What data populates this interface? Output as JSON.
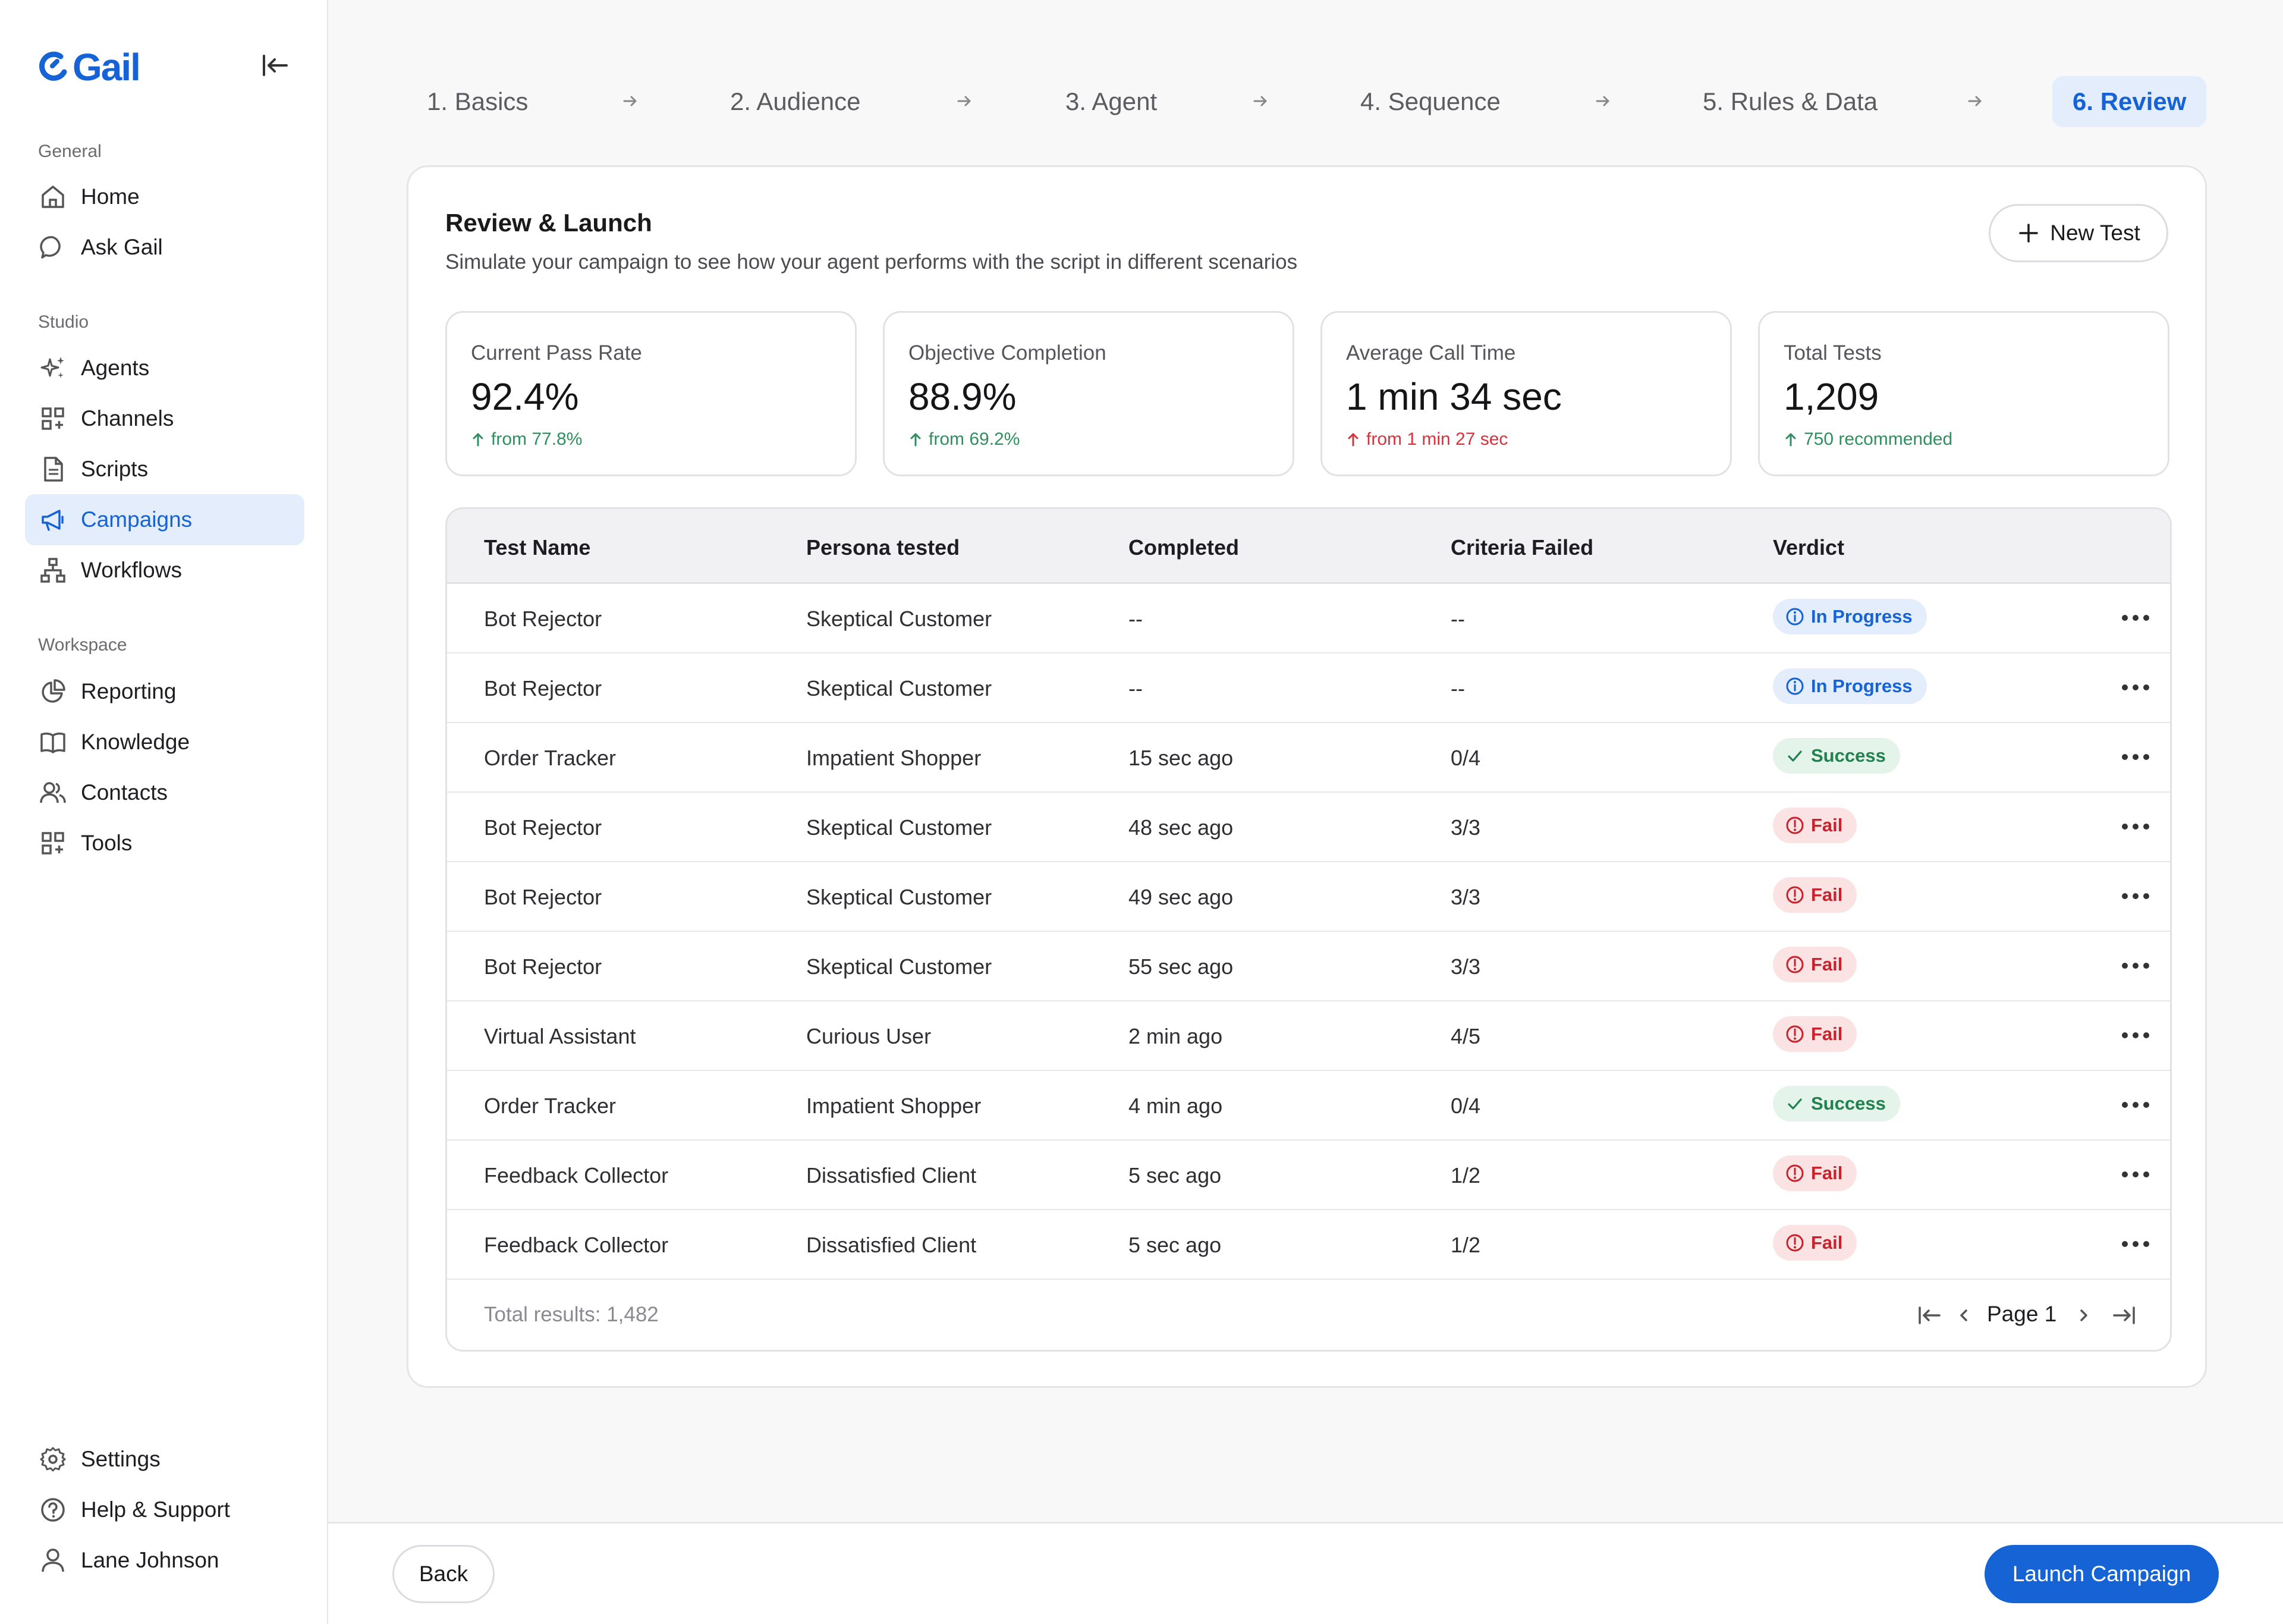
{
  "brand": {
    "name": "Gail",
    "accent": "#1663d6"
  },
  "sidebar": {
    "sections": {
      "general": "General",
      "studio": "Studio",
      "workspace": "Workspace"
    },
    "general": [
      {
        "label": "Home",
        "icon": "home-icon"
      },
      {
        "label": "Ask Gail",
        "icon": "chat-bubble-icon"
      }
    ],
    "studio": [
      {
        "label": "Agents",
        "icon": "sparkles-icon"
      },
      {
        "label": "Channels",
        "icon": "grid-plus-icon"
      },
      {
        "label": "Scripts",
        "icon": "document-icon"
      },
      {
        "label": "Campaigns",
        "icon": "megaphone-icon",
        "active": true
      },
      {
        "label": "Workflows",
        "icon": "workflow-icon"
      }
    ],
    "workspace": [
      {
        "label": "Reporting",
        "icon": "pie-chart-icon"
      },
      {
        "label": "Knowledge",
        "icon": "book-icon"
      },
      {
        "label": "Contacts",
        "icon": "users-icon"
      },
      {
        "label": "Tools",
        "icon": "grid-plus-icon"
      }
    ],
    "footer": [
      {
        "label": "Settings",
        "icon": "gear-icon"
      },
      {
        "label": "Help & Support",
        "icon": "help-circle-icon"
      },
      {
        "label": "Lane Johnson",
        "icon": "user-icon"
      }
    ]
  },
  "steps": [
    "1. Basics",
    "2. Audience",
    "3. Agent",
    "4. Sequence",
    "5. Rules & Data",
    "6. Review"
  ],
  "active_step": "6. Review",
  "review": {
    "title": "Review & Launch",
    "subtitle": "Simulate your campaign to see how your agent performs with the script in different scenarios",
    "new_test_label": "New Test"
  },
  "stats": [
    {
      "label": "Current Pass Rate",
      "value": "92.4%",
      "delta": "from 77.8%",
      "trend": "up-good"
    },
    {
      "label": "Objective Completion",
      "value": "88.9%",
      "delta": "from 69.2%",
      "trend": "up-good"
    },
    {
      "label": "Average Call Time",
      "value": "1 min 34 sec",
      "delta": "from 1 min 27 sec",
      "trend": "up-bad"
    },
    {
      "label": "Total Tests",
      "value": "1,209",
      "delta": "750 recommended",
      "trend": "up-good"
    }
  ],
  "colors": {
    "good": "#2f8f5e",
    "bad": "#d8323c"
  },
  "table": {
    "headers": [
      "Test Name",
      "Persona tested",
      "Completed",
      "Criteria Failed",
      "Verdict"
    ],
    "rows": [
      {
        "name": "Bot Rejector",
        "persona": "Skeptical Customer",
        "completed": "--",
        "criteria": "--",
        "verdict": "In Progress",
        "type": "progress"
      },
      {
        "name": "Bot Rejector",
        "persona": "Skeptical Customer",
        "completed": "--",
        "criteria": "--",
        "verdict": "In Progress",
        "type": "progress"
      },
      {
        "name": "Order Tracker",
        "persona": "Impatient Shopper",
        "completed": "15 sec ago",
        "criteria": "0/4",
        "verdict": "Success",
        "type": "success"
      },
      {
        "name": "Bot Rejector",
        "persona": "Skeptical Customer",
        "completed": "48 sec ago",
        "criteria": "3/3",
        "verdict": "Fail",
        "type": "fail"
      },
      {
        "name": "Bot Rejector",
        "persona": "Skeptical Customer",
        "completed": "49 sec ago",
        "criteria": "3/3",
        "verdict": "Fail",
        "type": "fail"
      },
      {
        "name": "Bot Rejector",
        "persona": "Skeptical Customer",
        "completed": "55 sec ago",
        "criteria": "3/3",
        "verdict": "Fail",
        "type": "fail"
      },
      {
        "name": "Virtual Assistant",
        "persona": "Curious User",
        "completed": "2 min ago",
        "criteria": "4/5",
        "verdict": "Fail",
        "type": "fail"
      },
      {
        "name": "Order Tracker",
        "persona": "Impatient Shopper",
        "completed": "4 min ago",
        "criteria": "0/4",
        "verdict": "Success",
        "type": "success"
      },
      {
        "name": "Feedback Collector",
        "persona": "Dissatisfied Client",
        "completed": "5 sec ago",
        "criteria": "1/2",
        "verdict": "Fail",
        "type": "fail"
      },
      {
        "name": "Feedback Collector",
        "persona": "Dissatisfied Client",
        "completed": "5 sec ago",
        "criteria": "1/2",
        "verdict": "Fail",
        "type": "fail"
      }
    ],
    "total_results": "Total results: 1,482",
    "page_label": "Page 1"
  },
  "footer_bar": {
    "back_label": "Back",
    "launch_label": "Launch Campaign"
  }
}
